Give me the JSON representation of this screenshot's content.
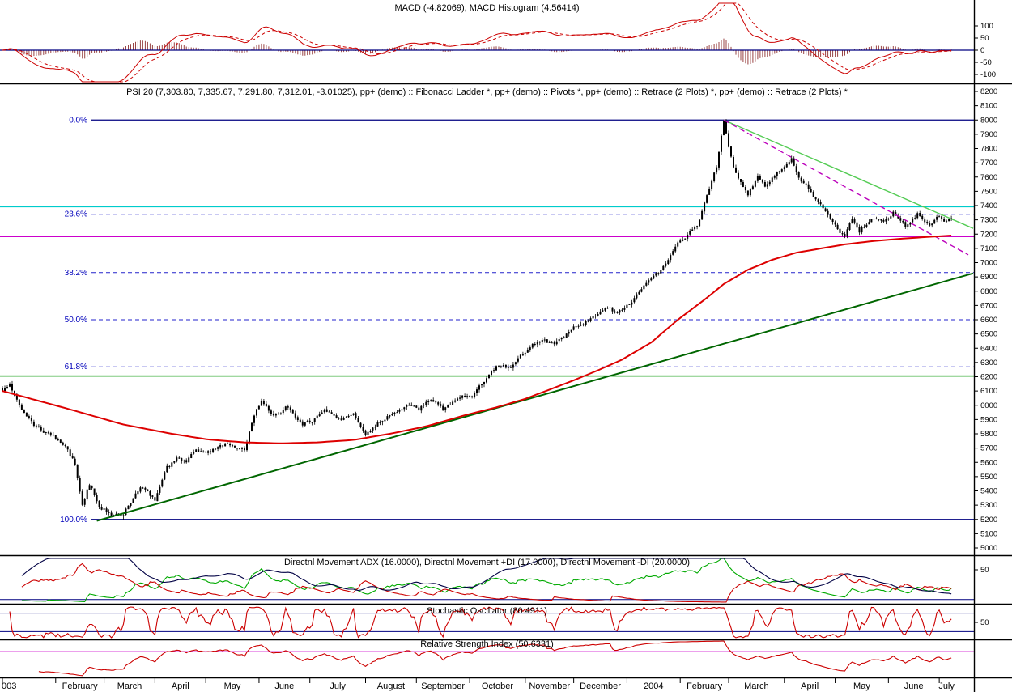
{
  "chart_data": {
    "type": "candlestick_with_indicators",
    "time_axis": {
      "total_days": 393,
      "months": [
        {
          "label": "003",
          "day": 0
        },
        {
          "label": "February",
          "day": 22
        },
        {
          "label": "March",
          "day": 42
        },
        {
          "label": "April",
          "day": 63
        },
        {
          "label": "May",
          "day": 84
        },
        {
          "label": "June",
          "day": 106
        },
        {
          "label": "July",
          "day": 127
        },
        {
          "label": "August",
          "day": 150
        },
        {
          "label": "September",
          "day": 171
        },
        {
          "label": "October",
          "day": 193
        },
        {
          "label": "November",
          "day": 216
        },
        {
          "label": "December",
          "day": 236
        },
        {
          "label": "2004",
          "day": 258
        },
        {
          "label": "February",
          "day": 280
        },
        {
          "label": "March",
          "day": 300
        },
        {
          "label": "April",
          "day": 323
        },
        {
          "label": "May",
          "day": 344
        },
        {
          "label": "June",
          "day": 366
        },
        {
          "label": "July",
          "day": 387
        }
      ]
    },
    "panels": {
      "macd": {
        "title": "MACD (-4.82069), MACD Histogram (4.56414)",
        "macd_value": -4.82069,
        "histogram_value": 4.56414,
        "axis_labels": [
          100,
          50,
          0,
          -50,
          -100
        ],
        "zero_line": 0
      },
      "price": {
        "title": "PSI 20 (7,303.80, 7,335.67, 7,291.80, 7,312.01, -3.01025), pp+ (demo) :: Fibonacci Ladder *, pp+ (demo) :: Pivots *, pp+ (demo) :: Retrace (2 Plots) *, pp+ (demo) :: Retrace (2 Plots) *",
        "ohlc": {
          "open": 7303.8,
          "high": 7335.67,
          "low": 7291.8,
          "close": 7312.01,
          "change": -3.01025
        },
        "axis": {
          "min": 5000,
          "max": 8200,
          "step": 100
        },
        "fib_levels": [
          {
            "label": "0.0%",
            "value": 8000,
            "style": "solid"
          },
          {
            "label": "23.6%",
            "value": 7339.2,
            "style": "dashed"
          },
          {
            "label": "38.2%",
            "value": 6930.4,
            "style": "dashed"
          },
          {
            "label": "50.0%",
            "value": 6600,
            "style": "dashed"
          },
          {
            "label": "61.8%",
            "value": 6269.6,
            "style": "dashed"
          },
          {
            "label": "100.0%",
            "value": 5200,
            "style": "solid"
          }
        ],
        "pivot_lines": [
          {
            "value": 7392,
            "color_key": "pivot_cyan",
            "width": 1.4
          },
          {
            "value": 7183,
            "color_key": "pivot_magenta",
            "width": 1.4
          },
          {
            "value": 6205,
            "color_key": "pivot_green",
            "width": 1.4
          }
        ],
        "trendlines": [
          {
            "name": "primary-uptrend-line",
            "from_day": 39,
            "from_value": 5190,
            "to_day": 401,
            "to_value": 6925,
            "color_key": "uptrend",
            "width": 2,
            "dash": ""
          },
          {
            "name": "downtrend-green-line",
            "from_day": 298,
            "from_value": 8000,
            "to_day": 401,
            "to_value": 7240,
            "color_key": "downtrend_green",
            "width": 1.4,
            "dash": ""
          },
          {
            "name": "downtrend-magenta-line",
            "from_day": 298,
            "from_value": 8000,
            "to_day": 399,
            "to_value": 7055,
            "color_key": "downtrend_magenta",
            "width": 1.4,
            "dash": "7 4"
          }
        ],
        "key_points": {
          "swing_high": {
            "day": 298,
            "value": 8000
          },
          "swing_low": {
            "day": 50,
            "value": 5200
          },
          "last_close": 7312.01
        },
        "close_anchors": [
          [
            0,
            6110
          ],
          [
            3,
            6140
          ],
          [
            8,
            5980
          ],
          [
            14,
            5850
          ],
          [
            20,
            5790
          ],
          [
            26,
            5710
          ],
          [
            30,
            5590
          ],
          [
            33,
            5320
          ],
          [
            36,
            5450
          ],
          [
            40,
            5300
          ],
          [
            45,
            5235
          ],
          [
            50,
            5230
          ],
          [
            53,
            5330
          ],
          [
            57,
            5420
          ],
          [
            60,
            5380
          ],
          [
            63,
            5340
          ],
          [
            68,
            5560
          ],
          [
            72,
            5620
          ],
          [
            76,
            5600
          ],
          [
            80,
            5690
          ],
          [
            84,
            5650
          ],
          [
            89,
            5710
          ],
          [
            95,
            5730
          ],
          [
            100,
            5690
          ],
          [
            103,
            5890
          ],
          [
            107,
            6040
          ],
          [
            112,
            5930
          ],
          [
            118,
            5990
          ],
          [
            124,
            5870
          ],
          [
            128,
            5890
          ],
          [
            133,
            5970
          ],
          [
            139,
            5900
          ],
          [
            145,
            5930
          ],
          [
            150,
            5810
          ],
          [
            156,
            5890
          ],
          [
            163,
            5960
          ],
          [
            168,
            6010
          ],
          [
            172,
            5980
          ],
          [
            177,
            6050
          ],
          [
            182,
            5960
          ],
          [
            188,
            6060
          ],
          [
            194,
            6070
          ],
          [
            199,
            6160
          ],
          [
            205,
            6280
          ],
          [
            210,
            6260
          ],
          [
            217,
            6400
          ],
          [
            223,
            6460
          ],
          [
            228,
            6420
          ],
          [
            234,
            6520
          ],
          [
            237,
            6560
          ],
          [
            243,
            6610
          ],
          [
            249,
            6680
          ],
          [
            254,
            6650
          ],
          [
            259,
            6720
          ],
          [
            265,
            6830
          ],
          [
            271,
            6930
          ],
          [
            277,
            7080
          ],
          [
            281,
            7170
          ],
          [
            287,
            7260
          ],
          [
            291,
            7480
          ],
          [
            295,
            7680
          ],
          [
            298,
            7990
          ],
          [
            300,
            7800
          ],
          [
            302,
            7650
          ],
          [
            305,
            7565
          ],
          [
            308,
            7460
          ],
          [
            312,
            7620
          ],
          [
            315,
            7540
          ],
          [
            318,
            7590
          ],
          [
            321,
            7640
          ],
          [
            324,
            7680
          ],
          [
            326,
            7730
          ],
          [
            329,
            7600
          ],
          [
            334,
            7500
          ],
          [
            339,
            7380
          ],
          [
            344,
            7250
          ],
          [
            348,
            7170
          ],
          [
            351,
            7310
          ],
          [
            354,
            7225
          ],
          [
            359,
            7310
          ],
          [
            364,
            7290
          ],
          [
            368,
            7350
          ],
          [
            373,
            7260
          ],
          [
            378,
            7340
          ],
          [
            383,
            7270
          ],
          [
            387,
            7320
          ],
          [
            390,
            7290
          ],
          [
            392,
            7312
          ]
        ],
        "ma_anchors": [
          [
            0,
            6100
          ],
          [
            25,
            5985
          ],
          [
            50,
            5865
          ],
          [
            70,
            5800
          ],
          [
            85,
            5760
          ],
          [
            100,
            5740
          ],
          [
            115,
            5733
          ],
          [
            130,
            5740
          ],
          [
            145,
            5757
          ],
          [
            160,
            5800
          ],
          [
            175,
            5852
          ],
          [
            191,
            5930
          ],
          [
            205,
            5990
          ],
          [
            216,
            6045
          ],
          [
            226,
            6110
          ],
          [
            236,
            6175
          ],
          [
            246,
            6245
          ],
          [
            256,
            6320
          ],
          [
            268,
            6440
          ],
          [
            279,
            6600
          ],
          [
            290,
            6740
          ],
          [
            298,
            6850
          ],
          [
            308,
            6950
          ],
          [
            318,
            7020
          ],
          [
            328,
            7070
          ],
          [
            340,
            7105
          ],
          [
            348,
            7128
          ],
          [
            360,
            7152
          ],
          [
            370,
            7166
          ],
          [
            380,
            7178
          ],
          [
            392,
            7190
          ]
        ]
      },
      "adx": {
        "title": "Directnl Movement ADX (16.0000), Directnl Movement +DI (17.0000), Directnl Movement -DI (20.0000)",
        "adx": 16.0,
        "plus_di": 17.0,
        "minus_di": 20.0,
        "axis_label": "50",
        "axis_value": 50
      },
      "stoch": {
        "title": "Stochastic Oscillator (80.4911)",
        "value": 80.4911,
        "levels": [
          80,
          20
        ],
        "axis_label": "50",
        "axis_value": 50
      },
      "rsi": {
        "title": "Relative Strength Index (50.6331)",
        "value": 50.6331,
        "levels": [
          70
        ]
      }
    },
    "colors": {
      "candle": "#000000",
      "ma": "#dd0000",
      "macd_line": "#cc0000",
      "macd_signal": "#cc0000",
      "histogram": "#994444",
      "fib_solid": "#000080",
      "fib_dashed": "#2222cc",
      "fib_label": "#0000bb",
      "pivot_cyan": "#00cccc",
      "pivot_magenta": "#cc00cc",
      "pivot_green": "#009900",
      "uptrend": "#006600",
      "downtrend_green": "#55cc55",
      "downtrend_magenta": "#bb00bb",
      "adx": "#000044",
      "plus_di": "#00aa00",
      "minus_di": "#cc0000",
      "stoch": "#cc0000",
      "rsi": "#cc0000",
      "level_navy": "#000080",
      "rsi_level": "#cc00cc"
    }
  }
}
